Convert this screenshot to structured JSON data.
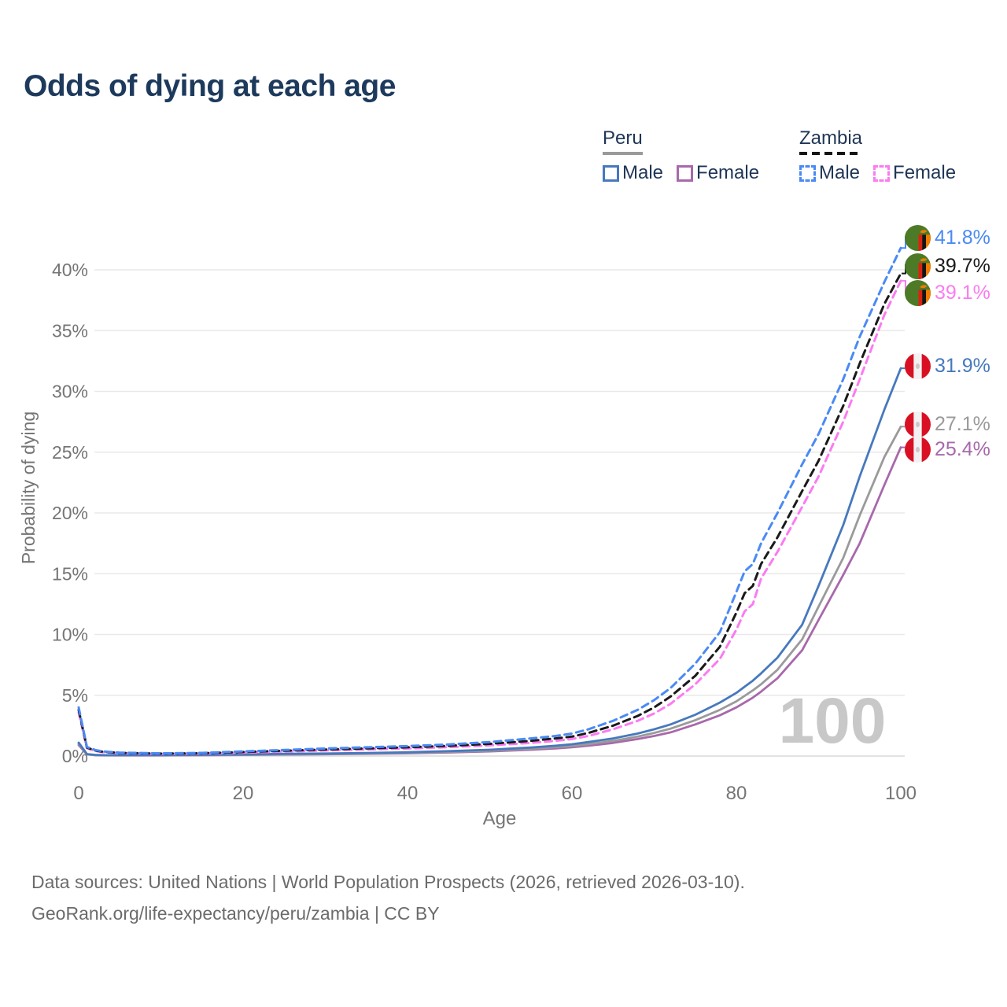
{
  "title": "Odds of dying at each age",
  "legend": {
    "groups": [
      {
        "label": "Peru",
        "style": "solid",
        "items": [
          {
            "label": "Male"
          },
          {
            "label": "Female"
          }
        ]
      },
      {
        "label": "Zambia",
        "style": "dashed",
        "items": [
          {
            "label": "Male"
          },
          {
            "label": "Female"
          }
        ]
      }
    ]
  },
  "colors": {
    "title_text": "#1d3a5c",
    "legend_text": "#1e3556",
    "axis_text": "#757575",
    "grid": "#e9e9e9",
    "baseline": "#d9d9d9",
    "watermark": "#c8c8c8",
    "footer_text": "#6b6b6b",
    "peru_male": "#4679bd",
    "peru_both": "#9a9a9a",
    "peru_female": "#a868ab",
    "zambia_male": "#4a8af4",
    "zambia_both": "#1a1a1a",
    "zambia_female": "#fb7bf2",
    "peru_flag_red": "#d91023",
    "zambia_flag_green": "#4c7a27",
    "zambia_flag_orange": "#ef7d00",
    "zambia_flag_red": "#de2010"
  },
  "chart_data": {
    "type": "line",
    "title": "Odds of dying at each age",
    "xlabel": "Age",
    "ylabel": "Probability of dying",
    "xlim": [
      0,
      100
    ],
    "ylim": [
      0,
      42.5
    ],
    "grid": true,
    "legend_position": "top-right",
    "watermark": "100",
    "x_ticks": [
      0,
      20,
      40,
      60,
      80,
      100
    ],
    "y_tick_labels": [
      "0%",
      "5%",
      "10%",
      "15%",
      "20%",
      "25%",
      "30%",
      "35%",
      "40%"
    ],
    "x": [
      0,
      1,
      2,
      3,
      5,
      10,
      15,
      20,
      25,
      30,
      35,
      40,
      45,
      50,
      55,
      58,
      60,
      62,
      65,
      68,
      70,
      72,
      75,
      78,
      80,
      81,
      82,
      83,
      85,
      88,
      90,
      93,
      95,
      98,
      100
    ],
    "series": [
      {
        "id": "zambia-male",
        "name": "Zambia Male",
        "country": "Zambia",
        "sex": "Male",
        "line": "dashed",
        "color": "zambia_male",
        "values": [
          4.0,
          0.75,
          0.5,
          0.38,
          0.28,
          0.22,
          0.26,
          0.38,
          0.5,
          0.62,
          0.72,
          0.82,
          0.95,
          1.15,
          1.45,
          1.65,
          1.85,
          2.2,
          2.9,
          3.8,
          4.6,
          5.6,
          7.6,
          10.2,
          13.5,
          15.2,
          15.8,
          17.5,
          20.0,
          24.0,
          26.5,
          31.0,
          34.5,
          39.0,
          41.8
        ],
        "end_label": "41.8%"
      },
      {
        "id": "zambia-both",
        "name": "Zambia Both sexes",
        "country": "Zambia",
        "sex": "Both",
        "line": "dashed",
        "color": "zambia_both",
        "values": [
          3.8,
          0.7,
          0.46,
          0.35,
          0.26,
          0.2,
          0.23,
          0.33,
          0.44,
          0.54,
          0.63,
          0.72,
          0.84,
          1.0,
          1.25,
          1.45,
          1.6,
          1.9,
          2.5,
          3.3,
          4.0,
          4.9,
          6.6,
          9.0,
          11.8,
          13.4,
          14.0,
          15.8,
          18.0,
          21.8,
          24.3,
          28.8,
          32.3,
          37.2,
          39.7
        ],
        "end_label": "39.7%"
      },
      {
        "id": "zambia-female",
        "name": "Zambia Female",
        "country": "Zambia",
        "sex": "Female",
        "line": "dashed",
        "color": "zambia_female",
        "values": [
          3.6,
          0.65,
          0.42,
          0.32,
          0.24,
          0.18,
          0.2,
          0.28,
          0.37,
          0.46,
          0.54,
          0.62,
          0.73,
          0.88,
          1.08,
          1.25,
          1.4,
          1.65,
          2.2,
          2.9,
          3.5,
          4.3,
          5.9,
          8.0,
          10.4,
          11.9,
          12.5,
          14.6,
          16.8,
          20.5,
          23.0,
          27.5,
          31.0,
          36.3,
          39.1
        ],
        "end_label": "39.1%"
      },
      {
        "id": "peru-male",
        "name": "Peru Male",
        "country": "Peru",
        "sex": "Male",
        "line": "solid",
        "color": "peru_male",
        "values": [
          1.1,
          0.16,
          0.1,
          0.08,
          0.07,
          0.07,
          0.1,
          0.14,
          0.18,
          0.21,
          0.25,
          0.31,
          0.4,
          0.52,
          0.7,
          0.85,
          0.97,
          1.15,
          1.45,
          1.85,
          2.2,
          2.6,
          3.4,
          4.4,
          5.2,
          5.7,
          6.2,
          6.8,
          8.1,
          10.8,
          14.0,
          19.0,
          23.0,
          28.5,
          31.9
        ],
        "end_label": "31.9%"
      },
      {
        "id": "peru-both",
        "name": "Peru Both sexes",
        "country": "Peru",
        "sex": "Both",
        "line": "solid",
        "color": "peru_both",
        "values": [
          1.0,
          0.14,
          0.08,
          0.07,
          0.06,
          0.06,
          0.08,
          0.11,
          0.14,
          0.17,
          0.21,
          0.26,
          0.34,
          0.44,
          0.6,
          0.73,
          0.83,
          0.98,
          1.25,
          1.6,
          1.9,
          2.25,
          2.95,
          3.8,
          4.5,
          4.95,
          5.4,
          5.9,
          7.1,
          9.6,
          12.3,
          16.3,
          19.8,
          24.6,
          27.1
        ],
        "end_label": "27.1%"
      },
      {
        "id": "peru-female",
        "name": "Peru Female",
        "country": "Peru",
        "sex": "Female",
        "line": "solid",
        "color": "peru_female",
        "values": [
          0.9,
          0.13,
          0.07,
          0.06,
          0.05,
          0.05,
          0.07,
          0.09,
          0.12,
          0.15,
          0.18,
          0.22,
          0.29,
          0.38,
          0.52,
          0.63,
          0.72,
          0.85,
          1.08,
          1.4,
          1.65,
          1.95,
          2.6,
          3.35,
          4.0,
          4.4,
          4.8,
          5.3,
          6.4,
          8.7,
          11.2,
          14.9,
          17.5,
          22.3,
          25.4
        ],
        "end_label": "25.4%"
      }
    ],
    "end_labels": [
      {
        "value": "41.8%",
        "series": "Zambia Male",
        "flag": "zambia",
        "color": "zambia_male"
      },
      {
        "value": "39.7%",
        "series": "Zambia Both",
        "flag": "zambia",
        "color": "zambia_both"
      },
      {
        "value": "39.1%",
        "series": "Zambia Female",
        "flag": "zambia",
        "color": "zambia_female"
      },
      {
        "value": "31.9%",
        "series": "Peru Male",
        "flag": "peru",
        "color": "peru_male"
      },
      {
        "value": "27.1%",
        "series": "Peru Both",
        "flag": "peru",
        "color": "peru_both"
      },
      {
        "value": "25.4%",
        "series": "Peru Female",
        "flag": "peru",
        "color": "peru_female"
      }
    ]
  },
  "footer": {
    "line1": "Data sources: United Nations | World Population Prospects (2026, retrieved 2026-03-10).",
    "line2": "GeoRank.org/life-expectancy/peru/zambia | CC BY"
  }
}
